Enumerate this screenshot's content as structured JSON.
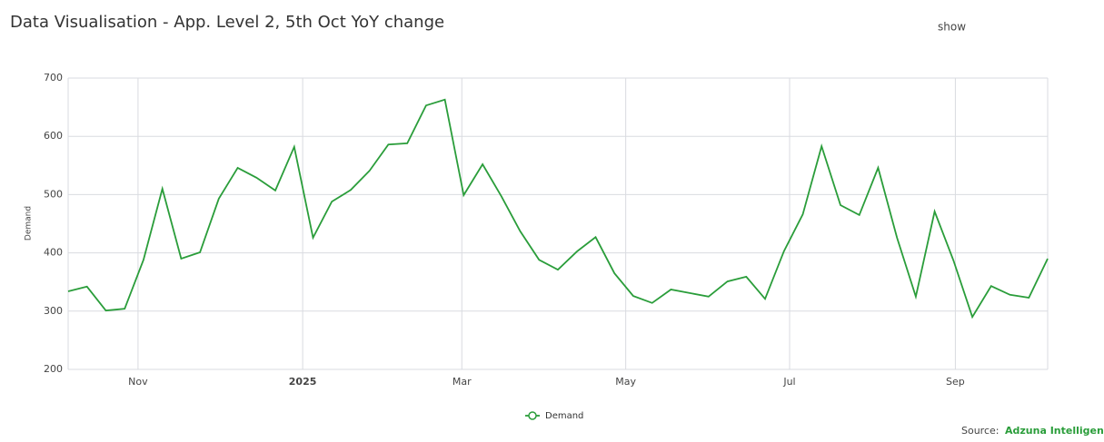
{
  "chart_data": {
    "type": "line",
    "title": "Data Visualisation - App. Level 2, 5th Oct YoY change",
    "y_label": "Demand",
    "series": [
      {
        "name": "Demand",
        "color": "#2a9d3a",
        "values": [
          334,
          342,
          301,
          304,
          388,
          510,
          390,
          401,
          493,
          546,
          529,
          507,
          582,
          426,
          488,
          508,
          541,
          586,
          588,
          653,
          663,
          499,
          552,
          497,
          437,
          388,
          371,
          402,
          427,
          365,
          326,
          314,
          337,
          331,
          325,
          351,
          359,
          321,
          403,
          466,
          583,
          482,
          465,
          546,
          426,
          325,
          471,
          387,
          290,
          343,
          328,
          323,
          390
        ]
      }
    ],
    "xlim": [
      0,
      52
    ],
    "xticks": [
      {
        "value": 3.71,
        "label": "Nov"
      },
      {
        "value": 12.45,
        "label": "2025"
      },
      {
        "value": 20.9,
        "label": "Mar"
      },
      {
        "value": 29.6,
        "label": "May"
      },
      {
        "value": 38.3,
        "label": "Jul"
      },
      {
        "value": 47.1,
        "label": "Sep"
      }
    ],
    "ylim": [
      200,
      700
    ],
    "yticks": [
      200,
      300,
      400,
      500,
      600,
      700
    ],
    "grid": true,
    "legend": "bottom"
  },
  "controls": {
    "toggle": "show"
  },
  "source": {
    "label": "Source:",
    "name": "Adzuna Intelligence"
  }
}
